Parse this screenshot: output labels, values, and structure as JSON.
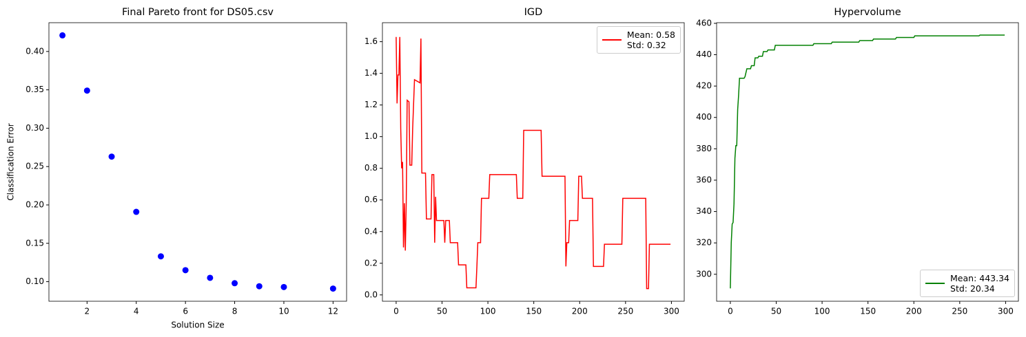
{
  "chart_data": [
    {
      "type": "scatter",
      "title": "Final Pareto front for DS05.csv",
      "xlabel": "Solution Size",
      "ylabel": "Classification Error",
      "x": [
        1,
        2,
        3,
        4,
        5,
        6,
        7,
        8,
        9,
        10,
        12
      ],
      "values": [
        0.421,
        0.349,
        0.263,
        0.191,
        0.133,
        0.115,
        0.105,
        0.098,
        0.094,
        0.093,
        0.091
      ],
      "color": "#0000ff",
      "xlim": [
        0.45,
        12.55
      ],
      "xticks": [
        2,
        4,
        6,
        8,
        10,
        12
      ],
      "ylim": [
        0.0745,
        0.4375
      ],
      "yticks": [
        {
          "value": 0.1,
          "label": "0.10"
        },
        0.15,
        {
          "value": 0.2,
          "label": "0.20"
        },
        0.25,
        {
          "value": 0.3,
          "label": "0.30"
        },
        0.35,
        {
          "value": 0.4,
          "label": "0.40"
        }
      ]
    },
    {
      "type": "line",
      "title": "IGD",
      "x": [
        0,
        1,
        2,
        3,
        4,
        5,
        6,
        7,
        8,
        9,
        10,
        11,
        12,
        14,
        15,
        17,
        18,
        20,
        26,
        27,
        28,
        32,
        33,
        38,
        39,
        41,
        42,
        43,
        44,
        52,
        53,
        54,
        58,
        59,
        67,
        68,
        76,
        77,
        87,
        88,
        89,
        92,
        93,
        101,
        102,
        131,
        132,
        138,
        139,
        158,
        159,
        184,
        185,
        186,
        188,
        189,
        198,
        199,
        202,
        203,
        214,
        215,
        226,
        227,
        246,
        247,
        272,
        273,
        275,
        276,
        299
      ],
      "series": [
        {
          "name": "Mean: 0.58\nStd: 0.32",
          "color": "#ff0000",
          "values": [
            1.63,
            1.21,
            1.39,
            1.39,
            1.63,
            1.05,
            0.8,
            0.84,
            0.3,
            0.58,
            0.28,
            0.58,
            1.23,
            1.22,
            0.82,
            0.82,
            1.05,
            1.36,
            1.34,
            1.62,
            0.77,
            0.77,
            0.48,
            0.48,
            0.76,
            0.76,
            0.33,
            0.62,
            0.47,
            0.47,
            0.33,
            0.47,
            0.47,
            0.33,
            0.33,
            0.19,
            0.19,
            0.045,
            0.045,
            0.18,
            0.33,
            0.33,
            0.61,
            0.61,
            0.76,
            0.76,
            0.61,
            0.61,
            1.04,
            1.04,
            0.75,
            0.75,
            0.18,
            0.33,
            0.33,
            0.47,
            0.47,
            0.75,
            0.75,
            0.61,
            0.61,
            0.18,
            0.18,
            0.32,
            0.32,
            0.61,
            0.61,
            0.04,
            0.04,
            0.32,
            0.32
          ]
        }
      ],
      "legend": "upper right",
      "xlim": [
        -14.95,
        313.95
      ],
      "xticks": [
        0,
        50,
        100,
        150,
        200,
        250,
        300
      ],
      "ylim": [
        -0.04,
        1.72
      ],
      "yticks": [
        {
          "value": 0,
          "label": "0.0"
        },
        0.2,
        0.4,
        0.6,
        0.8,
        {
          "value": 1,
          "label": "1.0"
        },
        1.2,
        1.4,
        1.6
      ]
    },
    {
      "type": "line",
      "title": "Hypervolume",
      "x": [
        0,
        1,
        2,
        3,
        4,
        5,
        6,
        7,
        8,
        9,
        10,
        15,
        16,
        18,
        22,
        23,
        26,
        27,
        30,
        31,
        35,
        36,
        40,
        41,
        48,
        49,
        90,
        91,
        110,
        111,
        140,
        141,
        155,
        156,
        180,
        181,
        200,
        201,
        271,
        272,
        299
      ],
      "series": [
        {
          "name": "Mean: 443.34\nStd: 20.34",
          "color": "#008000",
          "values": [
            291,
            320,
            332,
            333,
            345,
            374,
            382,
            382,
            405,
            414,
            425,
            425,
            426,
            431,
            431,
            433,
            433,
            438,
            438,
            439,
            439,
            442,
            442,
            443,
            443,
            446,
            446,
            447,
            447,
            448,
            448,
            449,
            449,
            450,
            450,
            451,
            451,
            452,
            452,
            452.5,
            452.5
          ]
        }
      ],
      "legend": "lower right",
      "xlim": [
        -14.95,
        313.95
      ],
      "xticks": [
        0,
        50,
        100,
        150,
        200,
        250,
        300
      ],
      "ylim": [
        282.8,
        460.4
      ],
      "yticks": [
        300,
        320,
        340,
        360,
        380,
        400,
        420,
        440,
        460
      ]
    }
  ]
}
